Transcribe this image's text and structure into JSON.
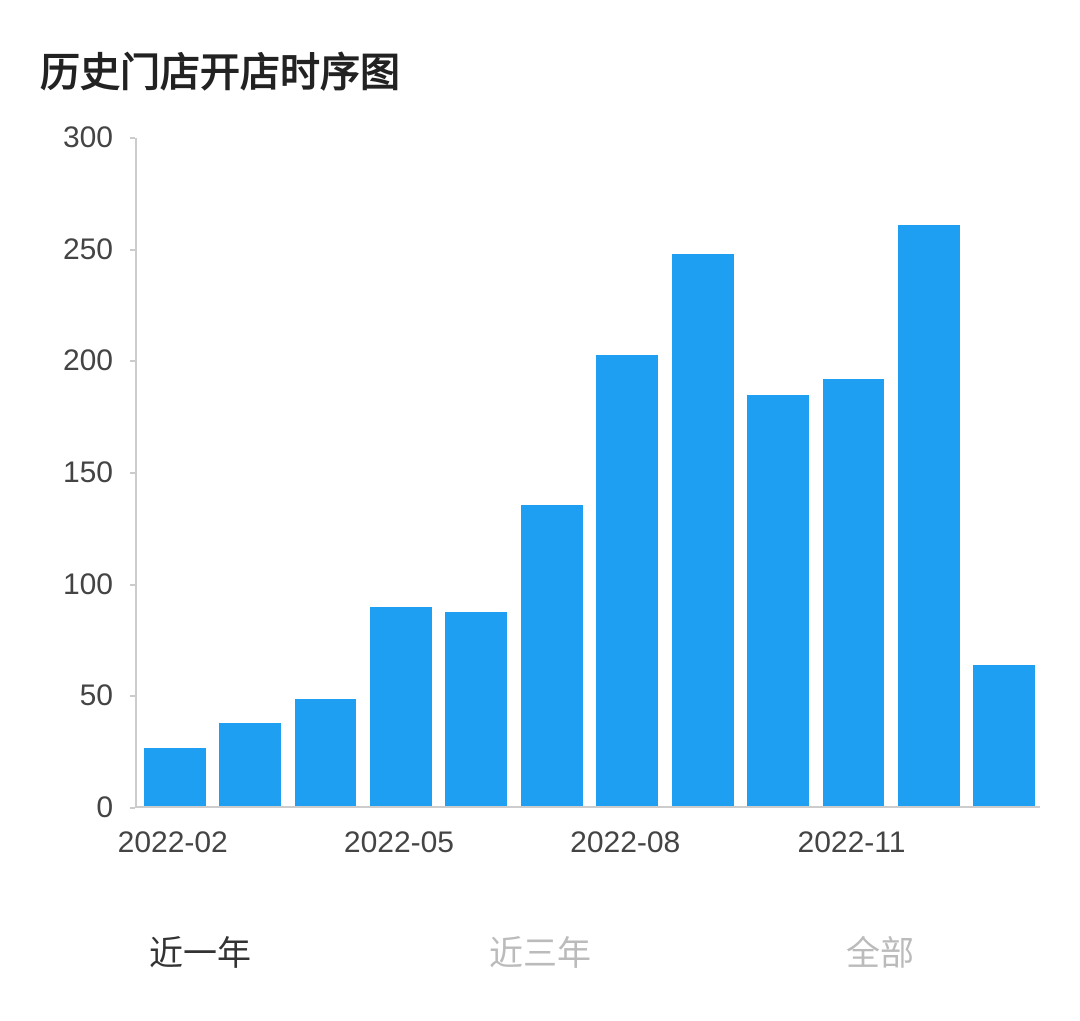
{
  "title": "历史门店开店时序图",
  "chart": {
    "type": "bar",
    "categories": [
      "2022-02",
      "2022-03",
      "2022-04",
      "2022-05",
      "2022-06",
      "2022-07",
      "2022-08",
      "2022-09",
      "2022-10",
      "2022-11",
      "2022-12",
      "2023-01"
    ],
    "values": [
      26,
      37,
      48,
      89,
      87,
      135,
      202,
      247,
      184,
      191,
      260,
      63
    ],
    "bar_color": "#1e9ff2",
    "ylim": [
      0,
      300
    ],
    "ytick_step": 50,
    "ytick_labels": [
      "0",
      "50",
      "100",
      "150",
      "200",
      "250",
      "300"
    ],
    "xtick_labels": [
      "2022-02",
      "2022-05",
      "2022-08",
      "2022-11"
    ],
    "xtick_category_indices": [
      0,
      3,
      6,
      9
    ],
    "background_color": "#ffffff",
    "axis_color": "#cccccc",
    "tick_font_color": "#444444",
    "tick_fontsize": 30,
    "title_fontsize": 40,
    "title_color": "#222222",
    "bar_width_ratio": 0.82,
    "bar_gap_ratio": 0.18
  },
  "tabs": {
    "items": [
      {
        "label": "近一年",
        "active": true
      },
      {
        "label": "近三年",
        "active": false
      },
      {
        "label": "全部",
        "active": false
      }
    ]
  }
}
